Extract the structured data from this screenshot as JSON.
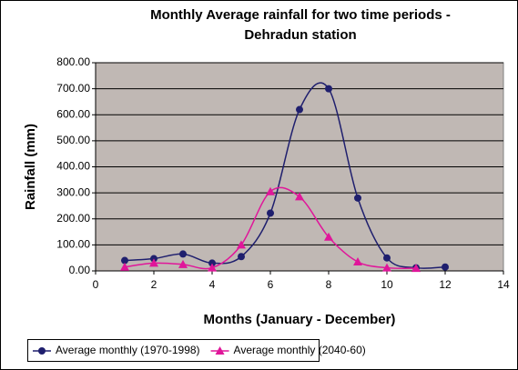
{
  "chart_data": {
    "type": "line",
    "title": "Monthly Average rainfall for two time periods - Dehradun station",
    "x_label": "Months (January - December)",
    "y_label": "Rainfall (mm)",
    "xlim": [
      0,
      14
    ],
    "xticks": [
      0,
      2,
      4,
      6,
      8,
      10,
      12,
      14
    ],
    "ylim": [
      0,
      800
    ],
    "yticks": [
      {
        "value": 0,
        "label": "0.00"
      },
      {
        "value": 100,
        "label": "100.00"
      },
      {
        "value": 200,
        "label": "200.00"
      },
      {
        "value": 300,
        "label": "300.00"
      },
      {
        "value": 400,
        "label": "400.00"
      },
      {
        "value": 500,
        "label": "500.00"
      },
      {
        "value": 600,
        "label": "600.00"
      },
      {
        "value": 700,
        "label": "700.00"
      },
      {
        "value": 800,
        "label": "800.00"
      }
    ],
    "grid": true,
    "smooth": true,
    "legend": "bottom",
    "series": [
      {
        "name": "Average monthly (1970-1998)",
        "color": "#1f1f6e",
        "marker": "circle",
        "x": [
          1,
          2,
          3,
          4,
          5,
          6,
          7,
          8,
          9,
          10,
          11,
          12
        ],
        "values": [
          40,
          47,
          65,
          30,
          55,
          222,
          620,
          700,
          280,
          50,
          12,
          15
        ]
      },
      {
        "name": "Average monthly (2040-60)",
        "color": "#e0169a",
        "marker": "triangle",
        "x": [
          1,
          2,
          3,
          4,
          5,
          6,
          7,
          8,
          9,
          10,
          11
        ],
        "values": [
          15,
          30,
          25,
          12,
          100,
          305,
          285,
          130,
          35,
          12,
          10
        ]
      }
    ]
  }
}
